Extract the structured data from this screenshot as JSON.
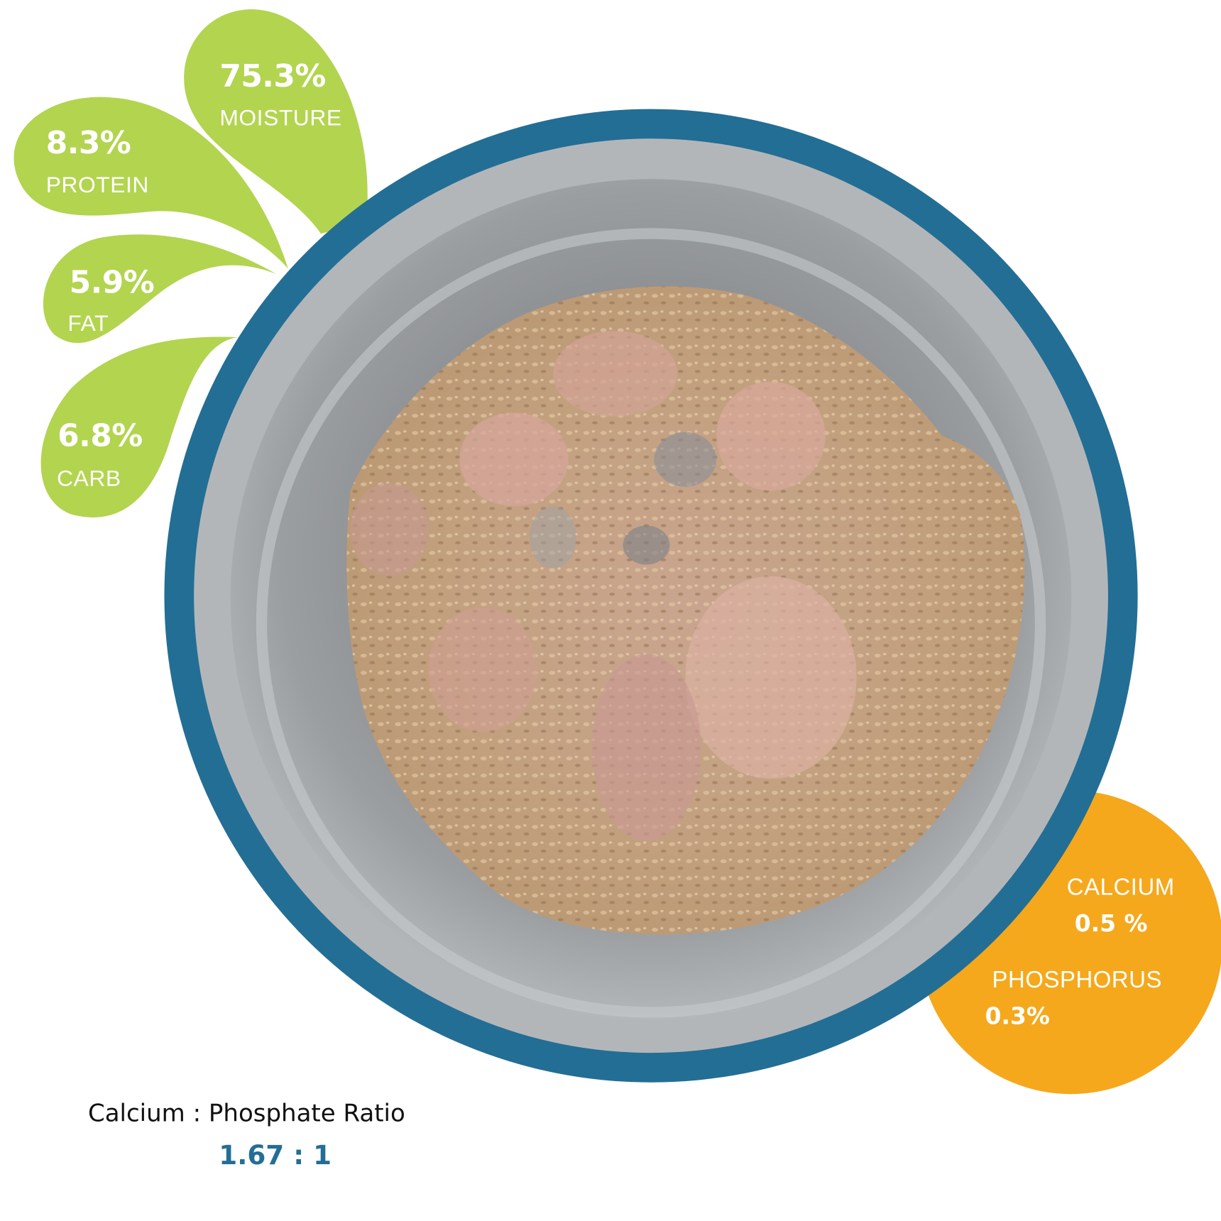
{
  "colors": {
    "petal_green": "#b3d44f",
    "ring_blue": "#236e95",
    "mineral_orange": "#f5a81c",
    "text_white": "#ffffff"
  },
  "nutrients": [
    {
      "value": "75.3%",
      "label": "MOISTURE"
    },
    {
      "value": "8.3%",
      "label": "PROTEIN"
    },
    {
      "value": "5.9%",
      "label": "FAT"
    },
    {
      "value": "6.8%",
      "label": "CARB"
    }
  ],
  "minerals": [
    {
      "label": "CALCIUM",
      "value": "0.5 %"
    },
    {
      "label": "PHOSPHORUS",
      "value": "0.3%"
    }
  ],
  "ratio": {
    "label": "Calcium : Phosphate Ratio",
    "value": "1.67 : 1"
  }
}
